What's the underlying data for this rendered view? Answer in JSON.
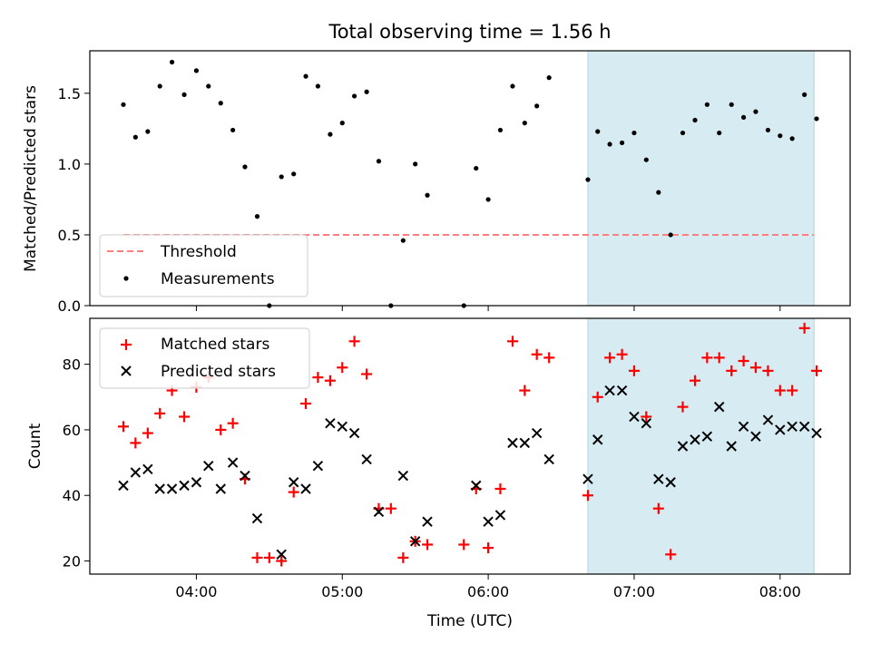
{
  "chart_data": {
    "title": "Total observing time = 1.56 h",
    "xlabel": "Time (UTC)",
    "x_ticks": [
      "04:00",
      "05:00",
      "06:00",
      "07:00",
      "08:00"
    ],
    "x_tick_values": [
      4.0,
      5.0,
      6.0,
      7.0,
      8.0
    ],
    "xlim": [
      3.27,
      8.48
    ],
    "highlight": {
      "x": [
        6.683,
        8.233
      ],
      "color": "#add8e6"
    },
    "panels": [
      {
        "type": "scatter",
        "ylabel": "Matched/Predicted stars",
        "ylim": [
          0.0,
          1.8
        ],
        "y_ticks": [
          0.0,
          0.5,
          1.0,
          1.5
        ],
        "y_tick_labels": [
          "0.0",
          "0.5",
          "1.0",
          "1.5"
        ],
        "legend_position": "lower-left",
        "threshold": {
          "name": "Threshold",
          "y": 0.5,
          "x": [
            3.5,
            8.23
          ],
          "color": "#ff7f7f"
        },
        "series": [
          {
            "name": "Measurements",
            "color": "#000000",
            "marker": "dot",
            "x": [
              3.5,
              3.583,
              3.667,
              3.75,
              3.833,
              3.917,
              4.0,
              4.083,
              4.167,
              4.25,
              4.333,
              4.417,
              4.5,
              4.583,
              4.667,
              4.75,
              4.833,
              4.917,
              5.0,
              5.083,
              5.167,
              5.25,
              5.333,
              5.417,
              5.5,
              5.583,
              5.833,
              5.917,
              6.0,
              6.083,
              6.167,
              6.25,
              6.333,
              6.417,
              6.683,
              6.75,
              6.833,
              6.917,
              7.0,
              7.083,
              7.167,
              7.25,
              7.333,
              7.417,
              7.5,
              7.583,
              7.667,
              7.75,
              7.833,
              7.917,
              8.0,
              8.083,
              8.167,
              8.25
            ],
            "y": [
              1.42,
              1.19,
              1.23,
              1.55,
              1.72,
              1.49,
              1.66,
              1.55,
              1.43,
              1.24,
              0.98,
              0.63,
              0.0,
              0.91,
              0.93,
              1.62,
              1.55,
              1.21,
              1.29,
              1.48,
              1.51,
              1.02,
              0.0,
              0.46,
              1.0,
              0.78,
              0.0,
              0.97,
              0.75,
              1.24,
              1.55,
              1.29,
              1.41,
              1.61,
              0.89,
              1.23,
              1.14,
              1.15,
              1.22,
              1.03,
              0.8,
              0.5,
              1.22,
              1.31,
              1.42,
              1.22,
              1.42,
              1.33,
              1.37,
              1.24,
              1.2,
              1.18,
              1.49,
              1.32
            ]
          }
        ]
      },
      {
        "type": "scatter",
        "ylabel": "Count",
        "ylim": [
          16,
          94
        ],
        "y_ticks": [
          20,
          40,
          60,
          80
        ],
        "y_tick_labels": [
          "20",
          "40",
          "60",
          "80"
        ],
        "legend_position": "upper-left",
        "series": [
          {
            "name": "Matched stars",
            "color": "#ff0000",
            "marker": "plus",
            "x": [
              3.5,
              3.583,
              3.667,
              3.75,
              3.833,
              3.917,
              4.0,
              4.083,
              4.167,
              4.25,
              4.333,
              4.417,
              4.5,
              4.583,
              4.667,
              4.75,
              4.833,
              4.917,
              5.0,
              5.083,
              5.167,
              5.25,
              5.333,
              5.417,
              5.5,
              5.583,
              5.833,
              5.917,
              6.0,
              6.083,
              6.167,
              6.25,
              6.333,
              6.417,
              6.683,
              6.75,
              6.833,
              6.917,
              7.0,
              7.083,
              7.167,
              7.25,
              7.333,
              7.417,
              7.5,
              7.583,
              7.667,
              7.75,
              7.833,
              7.917,
              8.0,
              8.083,
              8.167,
              8.25
            ],
            "y": [
              61,
              56,
              59,
              65,
              72,
              64,
              73,
              76,
              60,
              62,
              45,
              21,
              21,
              20,
              41,
              68,
              76,
              75,
              79,
              87,
              77,
              36,
              36,
              21,
              26,
              25,
              25,
              42,
              24,
              42,
              87,
              72,
              83,
              82,
              40,
              70,
              82,
              83,
              78,
              64,
              36,
              22,
              67,
              75,
              82,
              82,
              78,
              81,
              79,
              78,
              72,
              72,
              91,
              78
            ]
          },
          {
            "name": "Predicted stars",
            "color": "#000000",
            "marker": "x",
            "x": [
              3.5,
              3.583,
              3.667,
              3.75,
              3.833,
              3.917,
              4.0,
              4.083,
              4.167,
              4.25,
              4.333,
              4.417,
              4.583,
              4.667,
              4.75,
              4.833,
              4.917,
              5.0,
              5.083,
              5.167,
              5.25,
              5.417,
              5.5,
              5.583,
              5.917,
              6.0,
              6.083,
              6.167,
              6.25,
              6.333,
              6.417,
              6.683,
              6.75,
              6.833,
              6.917,
              7.0,
              7.083,
              7.167,
              7.25,
              7.333,
              7.417,
              7.5,
              7.583,
              7.667,
              7.75,
              7.833,
              7.917,
              8.0,
              8.083,
              8.167,
              8.25
            ],
            "y": [
              43,
              47,
              48,
              42,
              42,
              43,
              44,
              49,
              42,
              50,
              46,
              33,
              22,
              44,
              42,
              49,
              62,
              61,
              59,
              51,
              35,
              46,
              26,
              32,
              43,
              32,
              34,
              56,
              56,
              59,
              51,
              45,
              57,
              72,
              72,
              64,
              62,
              45,
              44,
              55,
              57,
              58,
              67,
              55,
              61,
              58,
              63,
              60,
              61,
              61,
              59
            ]
          }
        ]
      }
    ]
  }
}
